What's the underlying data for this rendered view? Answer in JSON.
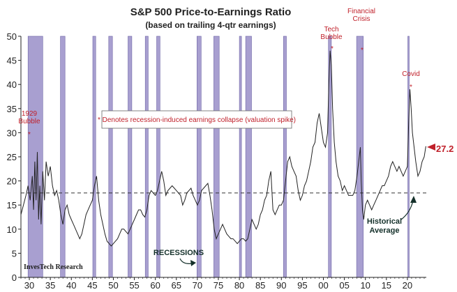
{
  "chart_data": {
    "type": "line",
    "title": "S&P 500 Price-to-Earnings Ratio",
    "subtitle": "(based on trailing 4-qtr earnings)",
    "xlabel": "",
    "ylabel": "",
    "x_ticks": [
      "30",
      "35",
      "40",
      "45",
      "50",
      "55",
      "60",
      "65",
      "70",
      "75",
      "80",
      "85",
      "90",
      "95",
      "00",
      "05",
      "10",
      "15",
      "20"
    ],
    "y_ticks": [
      0,
      5,
      10,
      15,
      20,
      25,
      30,
      35,
      40,
      45,
      50
    ],
    "xlim": [
      1928,
      2024.5
    ],
    "ylim": [
      0,
      50
    ],
    "grid": false,
    "series": [
      {
        "values": [
          [
            1928,
            13
          ],
          [
            1928.6,
            15
          ],
          [
            1929.2,
            17
          ],
          [
            1929.7,
            19
          ],
          [
            1930.2,
            16
          ],
          [
            1930.7,
            21
          ],
          [
            1931,
            14
          ],
          [
            1931.3,
            24
          ],
          [
            1931.6,
            16
          ],
          [
            1931.9,
            26
          ],
          [
            1932.2,
            12
          ],
          [
            1932.5,
            19
          ],
          [
            1932.8,
            11
          ],
          [
            1933.2,
            22
          ],
          [
            1933.6,
            16
          ],
          [
            1934,
            24
          ],
          [
            1934.5,
            21
          ],
          [
            1935,
            23
          ],
          [
            1935.5,
            19
          ],
          [
            1936,
            17
          ],
          [
            1936.5,
            18
          ],
          [
            1937,
            16
          ],
          [
            1937.5,
            13
          ],
          [
            1938,
            11
          ],
          [
            1938.5,
            14
          ],
          [
            1939,
            15
          ],
          [
            1939.5,
            13
          ],
          [
            1940,
            12
          ],
          [
            1940.5,
            11
          ],
          [
            1941,
            10
          ],
          [
            1941.5,
            9
          ],
          [
            1942,
            8
          ],
          [
            1942.5,
            9
          ],
          [
            1943,
            11
          ],
          [
            1943.5,
            13
          ],
          [
            1944,
            14
          ],
          [
            1944.5,
            15
          ],
          [
            1945,
            16
          ],
          [
            1945.5,
            19
          ],
          [
            1946,
            21
          ],
          [
            1946.5,
            16
          ],
          [
            1947,
            13
          ],
          [
            1947.5,
            11
          ],
          [
            1948,
            9
          ],
          [
            1948.5,
            7.5
          ],
          [
            1949,
            7
          ],
          [
            1949.5,
            6.5
          ],
          [
            1950,
            7
          ],
          [
            1950.5,
            7.5
          ],
          [
            1951,
            8
          ],
          [
            1951.5,
            9
          ],
          [
            1952,
            10
          ],
          [
            1952.5,
            10
          ],
          [
            1953,
            9.5
          ],
          [
            1953.5,
            9
          ],
          [
            1954,
            10
          ],
          [
            1954.5,
            11
          ],
          [
            1955,
            12
          ],
          [
            1955.5,
            13
          ],
          [
            1956,
            14
          ],
          [
            1956.5,
            14
          ],
          [
            1957,
            13
          ],
          [
            1957.5,
            12.5
          ],
          [
            1958,
            14
          ],
          [
            1958.5,
            17
          ],
          [
            1959,
            18
          ],
          [
            1959.5,
            17.5
          ],
          [
            1960,
            17
          ],
          [
            1960.5,
            18
          ],
          [
            1961,
            20
          ],
          [
            1961.5,
            22
          ],
          [
            1962,
            20
          ],
          [
            1962.5,
            17
          ],
          [
            1963,
            18
          ],
          [
            1963.5,
            18.5
          ],
          [
            1964,
            19
          ],
          [
            1964.5,
            18.5
          ],
          [
            1965,
            18
          ],
          [
            1965.5,
            17.5
          ],
          [
            1966,
            17
          ],
          [
            1966.5,
            15
          ],
          [
            1967,
            16
          ],
          [
            1967.5,
            17.5
          ],
          [
            1968,
            18
          ],
          [
            1968.5,
            18.5
          ],
          [
            1969,
            17
          ],
          [
            1969.5,
            16
          ],
          [
            1970,
            15
          ],
          [
            1970.5,
            16
          ],
          [
            1971,
            18
          ],
          [
            1971.5,
            18.5
          ],
          [
            1972,
            19
          ],
          [
            1972.5,
            19.5
          ],
          [
            1973,
            17
          ],
          [
            1973.5,
            14
          ],
          [
            1974,
            10
          ],
          [
            1974.5,
            8
          ],
          [
            1975,
            9
          ],
          [
            1975.5,
            10
          ],
          [
            1976,
            11
          ],
          [
            1976.5,
            10
          ],
          [
            1977,
            9
          ],
          [
            1977.5,
            8.5
          ],
          [
            1978,
            8
          ],
          [
            1978.5,
            8
          ],
          [
            1979,
            7.5
          ],
          [
            1979.5,
            7
          ],
          [
            1980,
            7.5
          ],
          [
            1980.5,
            8
          ],
          [
            1981,
            8
          ],
          [
            1981.5,
            7.5
          ],
          [
            1982,
            8
          ],
          [
            1982.5,
            10
          ],
          [
            1983,
            12
          ],
          [
            1983.5,
            11
          ],
          [
            1984,
            10
          ],
          [
            1984.5,
            11
          ],
          [
            1985,
            13
          ],
          [
            1985.5,
            14
          ],
          [
            1986,
            16
          ],
          [
            1986.5,
            17
          ],
          [
            1987,
            20
          ],
          [
            1987.5,
            22
          ],
          [
            1988,
            14
          ],
          [
            1988.5,
            13
          ],
          [
            1989,
            14
          ],
          [
            1989.5,
            15
          ],
          [
            1990,
            15
          ],
          [
            1990.5,
            16
          ],
          [
            1991,
            20
          ],
          [
            1991.5,
            24
          ],
          [
            1992,
            25
          ],
          [
            1992.5,
            23
          ],
          [
            1993,
            22
          ],
          [
            1993.5,
            21
          ],
          [
            1994,
            18
          ],
          [
            1994.5,
            16
          ],
          [
            1995,
            17
          ],
          [
            1995.5,
            19
          ],
          [
            1996,
            20
          ],
          [
            1996.5,
            22
          ],
          [
            1997,
            24
          ],
          [
            1997.5,
            27
          ],
          [
            1998,
            28
          ],
          [
            1998.5,
            32
          ],
          [
            1999,
            34
          ],
          [
            1999.5,
            31
          ],
          [
            2000,
            28
          ],
          [
            2000.5,
            27
          ],
          [
            2001,
            30
          ],
          [
            2001.3,
            40
          ],
          [
            2001.6,
            47
          ],
          [
            2001.9,
            44
          ],
          [
            2002.2,
            35
          ],
          [
            2002.6,
            28
          ],
          [
            2003,
            24
          ],
          [
            2003.5,
            21
          ],
          [
            2004,
            20
          ],
          [
            2004.5,
            18
          ],
          [
            2005,
            19
          ],
          [
            2005.5,
            18
          ],
          [
            2006,
            17
          ],
          [
            2006.5,
            17
          ],
          [
            2007,
            17
          ],
          [
            2007.5,
            18
          ],
          [
            2008,
            21
          ],
          [
            2008.4,
            24
          ],
          [
            2008.8,
            27
          ],
          [
            2009,
            20
          ],
          [
            2009.3,
            14
          ],
          [
            2009.6,
            12
          ],
          [
            2010,
            15
          ],
          [
            2010.5,
            16
          ],
          [
            2011,
            15
          ],
          [
            2011.5,
            14
          ],
          [
            2012,
            15
          ],
          [
            2012.5,
            16
          ],
          [
            2013,
            17
          ],
          [
            2013.5,
            18
          ],
          [
            2014,
            19
          ],
          [
            2014.5,
            19
          ],
          [
            2015,
            20
          ],
          [
            2015.5,
            21
          ],
          [
            2016,
            23
          ],
          [
            2016.5,
            24
          ],
          [
            2017,
            23
          ],
          [
            2017.5,
            22
          ],
          [
            2018,
            23
          ],
          [
            2018.5,
            22
          ],
          [
            2019,
            21
          ],
          [
            2019.5,
            22
          ],
          [
            2020,
            23
          ],
          [
            2020.3,
            32
          ],
          [
            2020.6,
            39
          ],
          [
            2020.9,
            35
          ],
          [
            2021.2,
            30
          ],
          [
            2021.6,
            27
          ],
          [
            2022,
            24
          ],
          [
            2022.5,
            21
          ],
          [
            2023,
            22
          ],
          [
            2023.5,
            24
          ],
          [
            2024,
            25
          ],
          [
            2024.4,
            27.2
          ]
        ]
      }
    ],
    "recessions": [
      [
        1929.7,
        1933.2
      ],
      [
        1937.4,
        1938.5
      ],
      [
        1945.1,
        1945.8
      ],
      [
        1948.9,
        1949.8
      ],
      [
        1953.5,
        1954.4
      ],
      [
        1957.6,
        1958.3
      ],
      [
        1960.3,
        1961.1
      ],
      [
        1969.9,
        1970.9
      ],
      [
        1973.9,
        1975.2
      ],
      [
        1980.0,
        1980.5
      ],
      [
        1981.5,
        1982.9
      ],
      [
        1990.5,
        1991.2
      ],
      [
        2001.2,
        2001.9
      ],
      [
        2007.9,
        2009.5
      ],
      [
        2020.1,
        2020.4
      ]
    ],
    "historical_average": 17.5,
    "labels": {
      "bubble_1929": [
        "1929",
        "Bubble"
      ],
      "tech_bubble": [
        "Tech",
        "Bubble"
      ],
      "financial_crisis": [
        "Financial",
        "Crisis"
      ],
      "covid": "Covid",
      "asterisk": "*",
      "legend_note": "* Denotes recession-induced earnings collapse (valuation spike)",
      "recessions": "RECESSIONS",
      "historical_average": [
        "Historical",
        "Average"
      ],
      "current_value": "27.2",
      "source": "InvesTech Research"
    },
    "colors": {
      "recession_fill": "#a89fd0",
      "recession_stroke": "#6f66a6",
      "line": "#222222",
      "accent_red": "#c0202a",
      "average_label": "#14302a"
    }
  }
}
